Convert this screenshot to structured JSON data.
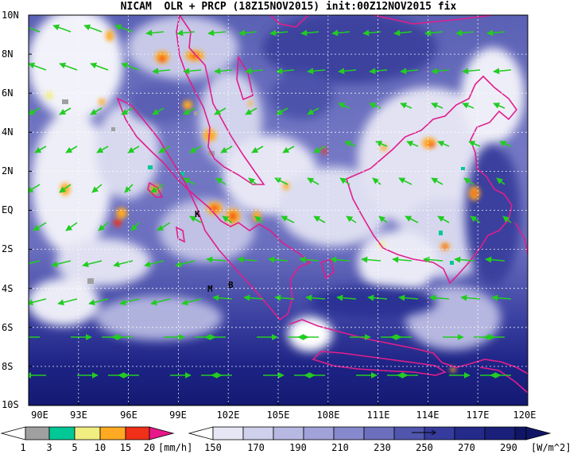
{
  "title": "NICAM  OLR + PRCP (18Z15NOV2015) init:00Z12NOV2015 fix",
  "lat_labels": [
    "10N",
    "8N",
    "6N",
    "4N",
    "2N",
    "EQ",
    "2S",
    "4S",
    "6S",
    "8S",
    "10S"
  ],
  "lon_labels": [
    "90E",
    "93E",
    "96E",
    "99E",
    "102E",
    "105E",
    "108E",
    "111E",
    "114E",
    "117E",
    "120E"
  ],
  "map": {
    "lon_range": [
      90,
      120
    ],
    "lat_range": [
      -10,
      10
    ],
    "station_markers": [
      {
        "label": "K",
        "lon": 100.1,
        "lat": -0.2
      },
      {
        "label": "M",
        "lon": 101.4,
        "lat": -4.0
      },
      {
        "label": "B",
        "lon": 102.4,
        "lat": -3.8
      }
    ]
  },
  "precip_colorbar": {
    "ticks": [
      "1",
      "3",
      "5",
      "10",
      "15",
      "20"
    ],
    "unit": "[mm/h]",
    "colors": [
      "#a0a0a0",
      "#00c896",
      "#f0ee80",
      "#ffaa22",
      "#f03018",
      "#e8188a"
    ]
  },
  "olr_colorbar": {
    "ticks": [
      "150",
      "170",
      "190",
      "210",
      "230",
      "250",
      "270",
      "290"
    ],
    "unit": "[W/m^2]",
    "colors": [
      "#ffffff",
      "#e6e6f5",
      "#cfd0ec",
      "#b8b9e2",
      "#a0a2d8",
      "#8689cc",
      "#6b6fbd",
      "#5055ad",
      "#363c9d",
      "#232a8a",
      "#1a1f7a",
      "#101566"
    ]
  },
  "wind_vector_color": "#22cc22",
  "coastline_color": "#e01e8c"
}
